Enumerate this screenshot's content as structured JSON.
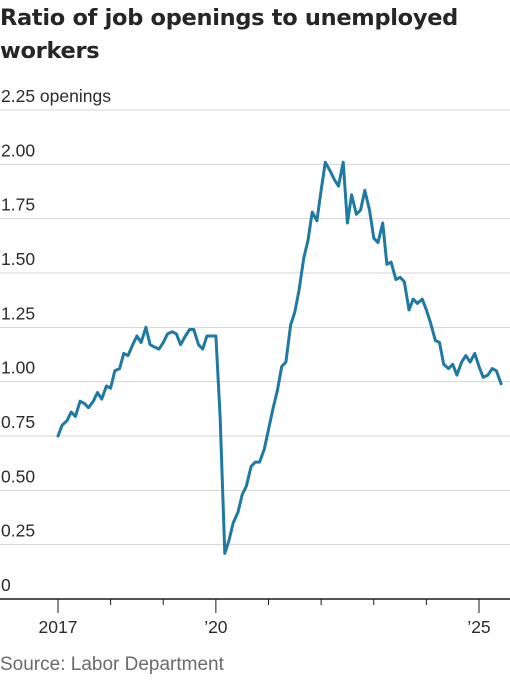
{
  "title": "Ratio of job openings to unemployed workers",
  "source": "Source: Labor Department",
  "chart_data": {
    "type": "line",
    "title": "Ratio of job openings to unemployed workers",
    "ylabel": "",
    "y_unit_label": "openings",
    "ylim": [
      0,
      2.25
    ],
    "y_ticks": [
      {
        "value": 0,
        "label": "0"
      },
      {
        "value": 0.25,
        "label": "0.25"
      },
      {
        "value": 0.5,
        "label": "0.50"
      },
      {
        "value": 0.75,
        "label": "0.75"
      },
      {
        "value": 1.0,
        "label": "1.00"
      },
      {
        "value": 1.25,
        "label": "1.25"
      },
      {
        "value": 1.5,
        "label": "1.50"
      },
      {
        "value": 1.75,
        "label": "1.75"
      },
      {
        "value": 2.0,
        "label": "2.00"
      },
      {
        "value": 2.25,
        "label": "2.25 openings"
      }
    ],
    "x_tick_labels": [
      {
        "value": 2017,
        "label": "2017"
      },
      {
        "value": 2020,
        "label": "’20"
      },
      {
        "value": 2025,
        "label": "’25"
      }
    ],
    "x_minor_ticks": [
      2018,
      2019,
      2021,
      2022,
      2023,
      2024
    ],
    "grid": true,
    "xlim": [
      2017,
      2025.5
    ],
    "series": [
      {
        "color": "#1f7aa3",
        "points": [
          [
            2017.0,
            0.75
          ],
          [
            2017.08,
            0.8
          ],
          [
            2017.17,
            0.82
          ],
          [
            2017.25,
            0.86
          ],
          [
            2017.33,
            0.84
          ],
          [
            2017.42,
            0.91
          ],
          [
            2017.5,
            0.9
          ],
          [
            2017.58,
            0.88
          ],
          [
            2017.67,
            0.91
          ],
          [
            2017.75,
            0.95
          ],
          [
            2017.83,
            0.92
          ],
          [
            2017.92,
            0.98
          ],
          [
            2018.0,
            0.97
          ],
          [
            2018.08,
            1.05
          ],
          [
            2018.17,
            1.06
          ],
          [
            2018.25,
            1.13
          ],
          [
            2018.33,
            1.12
          ],
          [
            2018.42,
            1.17
          ],
          [
            2018.5,
            1.21
          ],
          [
            2018.58,
            1.18
          ],
          [
            2018.67,
            1.25
          ],
          [
            2018.75,
            1.17
          ],
          [
            2018.83,
            1.16
          ],
          [
            2018.92,
            1.15
          ],
          [
            2019.0,
            1.18
          ],
          [
            2019.08,
            1.22
          ],
          [
            2019.17,
            1.23
          ],
          [
            2019.25,
            1.22
          ],
          [
            2019.33,
            1.17
          ],
          [
            2019.42,
            1.21
          ],
          [
            2019.5,
            1.24
          ],
          [
            2019.58,
            1.24
          ],
          [
            2019.67,
            1.17
          ],
          [
            2019.75,
            1.15
          ],
          [
            2019.83,
            1.21
          ],
          [
            2019.92,
            1.21
          ],
          [
            2020.0,
            1.21
          ],
          [
            2020.08,
            0.84
          ],
          [
            2020.17,
            0.21
          ],
          [
            2020.25,
            0.27
          ],
          [
            2020.33,
            0.35
          ],
          [
            2020.42,
            0.4
          ],
          [
            2020.5,
            0.48
          ],
          [
            2020.58,
            0.52
          ],
          [
            2020.67,
            0.61
          ],
          [
            2020.75,
            0.63
          ],
          [
            2020.83,
            0.63
          ],
          [
            2020.92,
            0.69
          ],
          [
            2021.0,
            0.78
          ],
          [
            2021.08,
            0.87
          ],
          [
            2021.17,
            0.96
          ],
          [
            2021.25,
            1.07
          ],
          [
            2021.33,
            1.09
          ],
          [
            2021.42,
            1.26
          ],
          [
            2021.5,
            1.32
          ],
          [
            2021.58,
            1.42
          ],
          [
            2021.67,
            1.57
          ],
          [
            2021.75,
            1.65
          ],
          [
            2021.83,
            1.78
          ],
          [
            2021.92,
            1.74
          ],
          [
            2022.0,
            1.88
          ],
          [
            2022.08,
            2.01
          ],
          [
            2022.17,
            1.97
          ],
          [
            2022.25,
            1.93
          ],
          [
            2022.33,
            1.9
          ],
          [
            2022.42,
            2.01
          ],
          [
            2022.5,
            1.73
          ],
          [
            2022.58,
            1.86
          ],
          [
            2022.67,
            1.77
          ],
          [
            2022.75,
            1.79
          ],
          [
            2022.83,
            1.88
          ],
          [
            2022.92,
            1.79
          ],
          [
            2023.0,
            1.66
          ],
          [
            2023.08,
            1.64
          ],
          [
            2023.17,
            1.73
          ],
          [
            2023.25,
            1.54
          ],
          [
            2023.33,
            1.55
          ],
          [
            2023.42,
            1.47
          ],
          [
            2023.5,
            1.48
          ],
          [
            2023.58,
            1.46
          ],
          [
            2023.67,
            1.33
          ],
          [
            2023.75,
            1.38
          ],
          [
            2023.83,
            1.36
          ],
          [
            2023.92,
            1.38
          ],
          [
            2024.0,
            1.33
          ],
          [
            2024.08,
            1.27
          ],
          [
            2024.17,
            1.19
          ],
          [
            2024.25,
            1.18
          ],
          [
            2024.33,
            1.08
          ],
          [
            2024.42,
            1.06
          ],
          [
            2024.5,
            1.08
          ],
          [
            2024.58,
            1.03
          ],
          [
            2024.67,
            1.09
          ],
          [
            2024.75,
            1.12
          ],
          [
            2024.83,
            1.09
          ],
          [
            2024.92,
            1.13
          ],
          [
            2025.0,
            1.07
          ],
          [
            2025.08,
            1.02
          ],
          [
            2025.17,
            1.03
          ],
          [
            2025.25,
            1.06
          ],
          [
            2025.33,
            1.05
          ],
          [
            2025.42,
            0.99
          ]
        ]
      }
    ]
  }
}
